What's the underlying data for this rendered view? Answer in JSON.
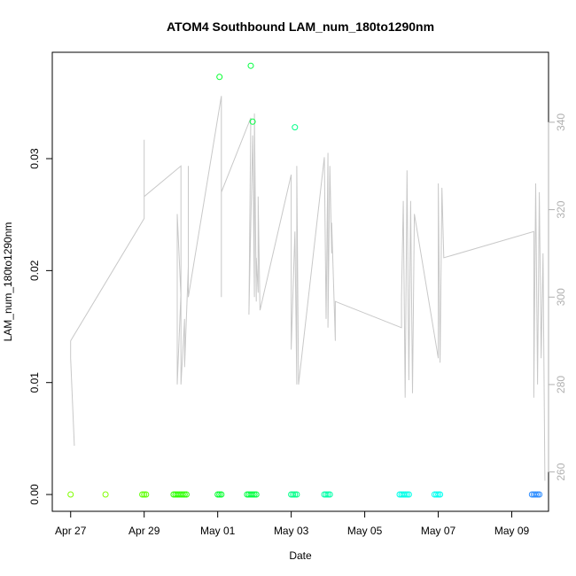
{
  "chart_data": {
    "type": "scatter",
    "title": "ATOM4 Southbound LAM_num_180to1290nm",
    "xlabel": "Date",
    "ylabel": "LAM_num_180to1290nm",
    "x_ticks": [
      "Apr 27",
      "Apr 29",
      "May 01",
      "May 03",
      "May 05",
      "May 07",
      "May 09"
    ],
    "x_tick_days": [
      0,
      2,
      4,
      6,
      8,
      10,
      12
    ],
    "xlim_days": [
      -0.5,
      13.0
    ],
    "ylim": [
      -0.0015,
      0.0395
    ],
    "y_ticks": [
      0.0,
      0.01,
      0.02,
      0.03
    ],
    "y_tick_labels": [
      "0.00",
      "0.01",
      "0.02",
      "0.03"
    ],
    "y2lim": [
      251,
      356
    ],
    "y2_ticks": [
      260,
      280,
      300,
      320,
      340
    ],
    "y2_tick_labels": [
      "260",
      "280",
      "300",
      "320",
      "340"
    ],
    "grid": false,
    "series": [
      {
        "kind": "points",
        "colors_note": "color shifts by date from yellow-green through green, cyan to blue",
        "points": [
          [
            0.0,
            0.0,
            "#80ff00"
          ],
          [
            0.95,
            0.0,
            "#80ff00"
          ],
          [
            1.95,
            0.0,
            "#5cff00"
          ],
          [
            2.0,
            0.0,
            "#5cff00"
          ],
          [
            2.05,
            0.0,
            "#5cff00"
          ],
          [
            2.8,
            0.0,
            "#2cff00"
          ],
          [
            2.85,
            0.0,
            "#2cff00"
          ],
          [
            2.9,
            0.0,
            "#2cff00"
          ],
          [
            2.95,
            0.0,
            "#2cff00"
          ],
          [
            3.0,
            0.0,
            "#2cff00"
          ],
          [
            3.05,
            0.0,
            "#2cff00"
          ],
          [
            3.1,
            0.0,
            "#2cff00"
          ],
          [
            3.15,
            0.0,
            "#2cff00"
          ],
          [
            4.0,
            0.0,
            "#00ff2c"
          ],
          [
            4.05,
            0.0,
            "#00ff2c"
          ],
          [
            4.1,
            0.0,
            "#00ff2c"
          ],
          [
            4.05,
            0.0373,
            "#00ff2c"
          ],
          [
            4.8,
            0.0,
            "#00ff40"
          ],
          [
            4.85,
            0.0,
            "#00ff40"
          ],
          [
            4.9,
            0.0,
            "#00ff40"
          ],
          [
            4.95,
            0.0,
            "#00ff40"
          ],
          [
            5.0,
            0.0,
            "#00ff40"
          ],
          [
            5.05,
            0.0,
            "#00ff40"
          ],
          [
            4.9,
            0.0383,
            "#00ff40"
          ],
          [
            4.95,
            0.0333,
            "#00ff40"
          ],
          [
            6.0,
            0.0,
            "#00ff88"
          ],
          [
            6.05,
            0.0,
            "#00ff88"
          ],
          [
            6.1,
            0.0,
            "#00ff88"
          ],
          [
            6.15,
            0.0,
            "#00ff88"
          ],
          [
            6.1,
            0.0328,
            "#00ff88"
          ],
          [
            6.9,
            0.0,
            "#00ffa8"
          ],
          [
            6.95,
            0.0,
            "#00ffa8"
          ],
          [
            7.0,
            0.0,
            "#00ffa8"
          ],
          [
            7.05,
            0.0,
            "#00ffa8"
          ],
          [
            8.95,
            0.0,
            "#00ffe8"
          ],
          [
            9.0,
            0.0,
            "#00ffe8"
          ],
          [
            9.05,
            0.0,
            "#00ffe8"
          ],
          [
            9.1,
            0.0,
            "#00ffe8"
          ],
          [
            9.15,
            0.0,
            "#00ffe8"
          ],
          [
            9.2,
            0.0,
            "#00ffe8"
          ],
          [
            9.9,
            0.0,
            "#00fff0"
          ],
          [
            9.95,
            0.0,
            "#00fff0"
          ],
          [
            10.0,
            0.0,
            "#00fff0"
          ],
          [
            10.05,
            0.0,
            "#00fff0"
          ],
          [
            12.55,
            0.0,
            "#2c8cff"
          ],
          [
            12.6,
            0.0,
            "#2c8cff"
          ],
          [
            12.65,
            0.0,
            "#2c8cff"
          ],
          [
            12.7,
            0.0,
            "#2c8cff"
          ],
          [
            12.75,
            0.0,
            "#2c8cff"
          ]
        ]
      },
      {
        "kind": "line",
        "axis": "right",
        "color": "#c8c8c8",
        "points": [
          [
            0.1,
            266
          ],
          [
            0.0,
            286
          ],
          [
            0.0,
            290
          ],
          [
            2.0,
            318
          ],
          [
            2.0,
            336
          ],
          [
            2.0,
            323
          ],
          [
            3.0,
            330
          ],
          [
            3.0,
            286
          ],
          [
            3.0,
            300
          ],
          [
            2.9,
            319
          ],
          [
            2.9,
            280
          ],
          [
            3.0,
            301
          ],
          [
            3.0,
            280
          ],
          [
            3.1,
            295
          ],
          [
            3.1,
            284
          ],
          [
            3.2,
            307
          ],
          [
            3.2,
            330
          ],
          [
            3.2,
            300
          ],
          [
            4.1,
            346
          ],
          [
            4.1,
            300
          ],
          [
            4.1,
            343
          ],
          [
            4.1,
            320
          ],
          [
            4.1,
            324
          ],
          [
            4.9,
            341
          ],
          [
            4.85,
            296
          ],
          [
            4.95,
            337
          ],
          [
            5.0,
            300
          ],
          [
            5.0,
            342
          ],
          [
            5.05,
            299
          ],
          [
            5.05,
            309
          ],
          [
            5.1,
            301
          ],
          [
            5.1,
            323
          ],
          [
            5.15,
            297
          ],
          [
            6.0,
            328
          ],
          [
            6.0,
            288
          ],
          [
            6.1,
            315
          ],
          [
            6.15,
            280
          ],
          [
            6.15,
            330
          ],
          [
            6.2,
            280
          ],
          [
            6.9,
            332
          ],
          [
            6.95,
            295
          ],
          [
            7.0,
            333
          ],
          [
            7.0,
            293
          ],
          [
            7.05,
            330
          ],
          [
            7.1,
            310
          ],
          [
            7.1,
            317
          ],
          [
            7.2,
            290
          ],
          [
            7.2,
            299
          ],
          [
            9.0,
            293
          ],
          [
            9.0,
            300
          ],
          [
            9.05,
            322
          ],
          [
            9.1,
            277
          ],
          [
            9.15,
            329
          ],
          [
            9.2,
            281
          ],
          [
            9.25,
            322
          ],
          [
            9.3,
            278
          ],
          [
            9.35,
            319
          ],
          [
            10.0,
            286
          ],
          [
            10.0,
            326
          ],
          [
            10.05,
            285
          ],
          [
            10.1,
            325
          ],
          [
            10.15,
            309
          ],
          [
            12.6,
            315
          ],
          [
            12.6,
            277
          ],
          [
            12.65,
            326
          ],
          [
            12.7,
            280
          ],
          [
            12.75,
            324
          ],
          [
            12.8,
            286
          ],
          [
            12.85,
            310
          ],
          [
            12.9,
            258
          ]
        ]
      }
    ]
  }
}
